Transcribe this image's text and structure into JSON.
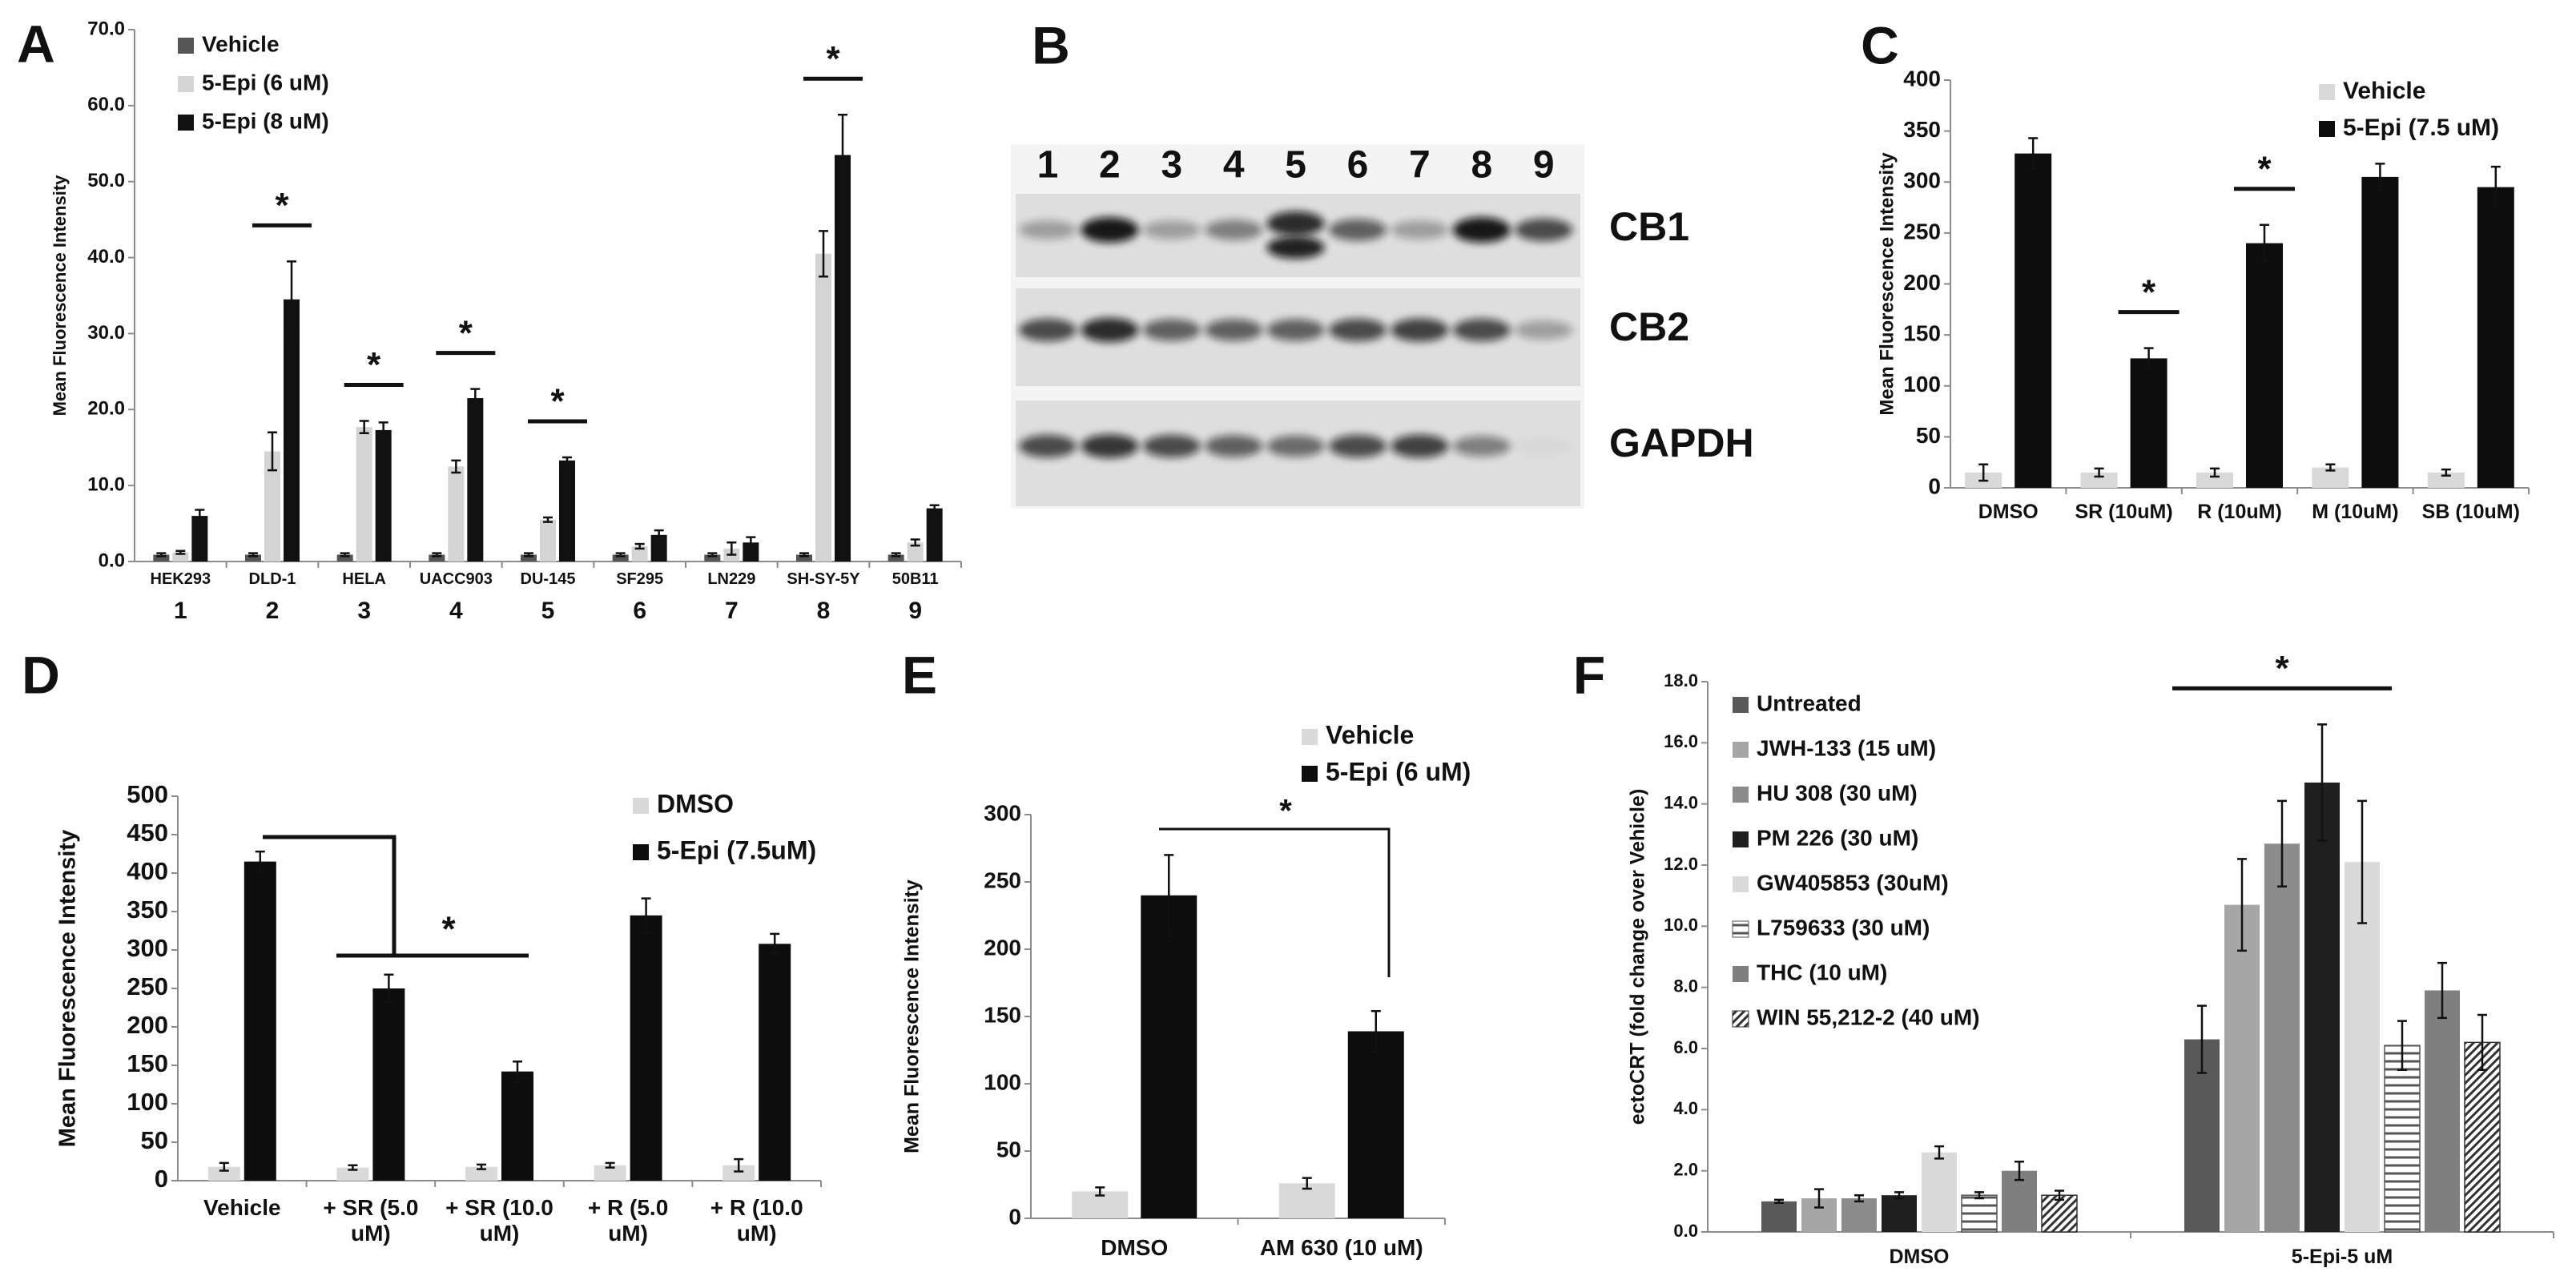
{
  "chart_data": [
    {
      "type": "bar",
      "panel_label": "A",
      "ylabel": "Mean Fluorescence Intensity",
      "categories": [
        "HEK293",
        "DLD-1",
        "HELA",
        "UACC903",
        "DU-145",
        "SF295",
        "LN229",
        "SH-SY-5Y",
        "50B11"
      ],
      "category_numbers": [
        "1",
        "2",
        "3",
        "4",
        "5",
        "6",
        "7",
        "8",
        "9"
      ],
      "series": [
        {
          "name": "Vehicle",
          "color": "#555555",
          "values": [
            0.9,
            0.9,
            0.9,
            0.9,
            0.9,
            0.9,
            0.9,
            0.9,
            0.9
          ],
          "errors": [
            0.2,
            0.2,
            0.2,
            0.2,
            0.2,
            0.2,
            0.2,
            0.2,
            0.2
          ]
        },
        {
          "name": "5-Epi (6 uM)",
          "color": "#d4d4d4",
          "values": [
            1.2,
            14.5,
            17.7,
            12.5,
            5.5,
            2,
            1.7,
            40.5,
            2.5
          ],
          "errors": [
            0.2,
            2.5,
            0.8,
            0.8,
            0.3,
            0.3,
            0.8,
            3,
            0.4
          ]
        },
        {
          "name": "5-Epi (8 uM)",
          "color": "#111111",
          "values": [
            6,
            34.5,
            17.3,
            21.5,
            13.3,
            3.5,
            2.5,
            53.5,
            7
          ],
          "errors": [
            0.8,
            5,
            1,
            1.2,
            0.4,
            0.6,
            0.7,
            5.3,
            0.4
          ]
        }
      ],
      "ylim": [
        0,
        70
      ],
      "yticks": [
        {
          "value": 0,
          "label": "0.0"
        },
        {
          "value": 10,
          "label": "10.0"
        },
        {
          "value": 20,
          "label": "20.0"
        },
        {
          "value": 30,
          "label": "30.0"
        },
        {
          "value": 40,
          "label": "40.0"
        },
        {
          "value": 50,
          "label": "50.0"
        },
        {
          "value": 60,
          "label": "60.0"
        },
        {
          "value": 70,
          "label": "70.0"
        }
      ],
      "significance": [
        "*",
        "*",
        "*",
        "*",
        "*"
      ]
    },
    {
      "type": "bar",
      "panel_label": "C",
      "ylabel": "Mean Fluorescence Intensity",
      "categories": [
        "DMSO",
        "SR (10uM)",
        "R (10uM)",
        "M (10uM)",
        "SB (10uM)"
      ],
      "series": [
        {
          "name": "Vehicle",
          "color": "#d9d9d9",
          "values": [
            15,
            15,
            15,
            20,
            15
          ],
          "errors": [
            8,
            4,
            4,
            3,
            3
          ]
        },
        {
          "name": "5-Epi (7.5 uM)",
          "color": "#0d0d0d",
          "values": [
            328,
            127,
            240,
            305,
            295
          ],
          "errors": [
            15,
            10,
            18,
            13,
            20
          ]
        }
      ],
      "ylim": [
        0,
        400
      ],
      "yticks": [
        0,
        50,
        100,
        150,
        200,
        250,
        300,
        350,
        400
      ],
      "significance": [
        "*",
        "*"
      ]
    },
    {
      "type": "bar",
      "panel_label": "D",
      "ylabel": "Mean Fluorescence Intensity",
      "categories": [
        "Vehicle",
        "+ SR (5.0 uM)",
        "+ SR (10.0 uM)",
        "+ R (5.0 uM)",
        "+ R (10.0 uM)"
      ],
      "series": [
        {
          "name": "DMSO",
          "color": "#d9d9d9",
          "values": [
            18,
            17,
            18,
            20,
            20
          ],
          "errors": [
            5,
            3,
            3,
            3,
            8
          ]
        },
        {
          "name": "5-Epi (7.5uM)",
          "color": "#0d0d0d",
          "values": [
            415,
            250,
            142,
            345,
            308
          ],
          "errors": [
            13,
            18,
            13,
            22,
            13
          ]
        }
      ],
      "ylim": [
        0,
        500
      ],
      "yticks": [
        0,
        50,
        100,
        150,
        200,
        250,
        300,
        350,
        400,
        450,
        500
      ],
      "significance": [
        "*"
      ]
    },
    {
      "type": "bar",
      "panel_label": "E",
      "ylabel": "Mean Fluorescence Intensity",
      "categories": [
        "DMSO",
        "AM 630 (10 uM)"
      ],
      "series": [
        {
          "name": "Vehicle",
          "color": "#d9d9d9",
          "values": [
            20,
            26
          ],
          "errors": [
            3,
            4
          ]
        },
        {
          "name": "5-Epi (6 uM)",
          "color": "#0d0d0d",
          "values": [
            240,
            139
          ],
          "errors": [
            30,
            15
          ]
        }
      ],
      "ylim": [
        0,
        300
      ],
      "yticks": [
        0,
        50,
        100,
        150,
        200,
        250,
        300
      ],
      "significance": [
        "*"
      ]
    },
    {
      "type": "bar",
      "panel_label": "F",
      "ylabel": "ectoCRT (fold change over Vehicle)",
      "categories": [
        "DMSO",
        "5-Epi-5 uM"
      ],
      "series": [
        {
          "name": "Untreated",
          "color": "#595959",
          "values": [
            1.0,
            6.3
          ],
          "errors": [
            0.05,
            1.1
          ]
        },
        {
          "name": "JWH-133 (15 uM)",
          "color": "#a6a6a6",
          "values": [
            1.1,
            10.7
          ],
          "errors": [
            0.3,
            1.5
          ]
        },
        {
          "name": "HU 308  (30 uM)",
          "color": "#8c8c8c",
          "values": [
            1.1,
            12.7
          ],
          "errors": [
            0.1,
            1.4
          ]
        },
        {
          "name": "PM 226 (30 uM)",
          "color": "#1f1f1f",
          "values": [
            1.2,
            14.7
          ],
          "errors": [
            0.1,
            1.9
          ]
        },
        {
          "name": "GW405853 (30uM)",
          "color": "#dadada",
          "values": [
            2.6,
            12.1
          ],
          "errors": [
            0.2,
            2.0
          ]
        },
        {
          "name": "L759633 (30 uM)",
          "color": "#555555",
          "pattern": "horizontal",
          "values": [
            1.2,
            6.1
          ],
          "errors": [
            0.1,
            0.8
          ]
        },
        {
          "name": "THC (10 uM)",
          "color": "#7f7f7f",
          "values": [
            2.0,
            7.9
          ],
          "errors": [
            0.3,
            0.9
          ]
        },
        {
          "name": "WIN 55,212-2 (40 uM)",
          "color": "#333333",
          "pattern": "diagonal",
          "values": [
            1.2,
            6.2
          ],
          "errors": [
            0.15,
            0.9
          ]
        }
      ],
      "ylim": [
        0,
        18
      ],
      "yticks": [
        {
          "value": 0,
          "label": "0.0"
        },
        {
          "value": 2,
          "label": "2.0"
        },
        {
          "value": 4,
          "label": "4.0"
        },
        {
          "value": 6,
          "label": "6.0"
        },
        {
          "value": 8,
          "label": "8.0"
        },
        {
          "value": 10,
          "label": "10.0"
        },
        {
          "value": 12,
          "label": "12.0"
        },
        {
          "value": 14,
          "label": "14.0"
        },
        {
          "value": 16,
          "label": "16.0"
        },
        {
          "value": 18,
          "label": "18.0"
        }
      ],
      "significance": [
        "*"
      ]
    }
  ],
  "western_blot": {
    "panel_label": "B",
    "lanes": [
      "1",
      "2",
      "3",
      "4",
      "5",
      "6",
      "7",
      "8",
      "9"
    ],
    "bands": [
      "CB1",
      "CB2",
      "GAPDH"
    ]
  }
}
